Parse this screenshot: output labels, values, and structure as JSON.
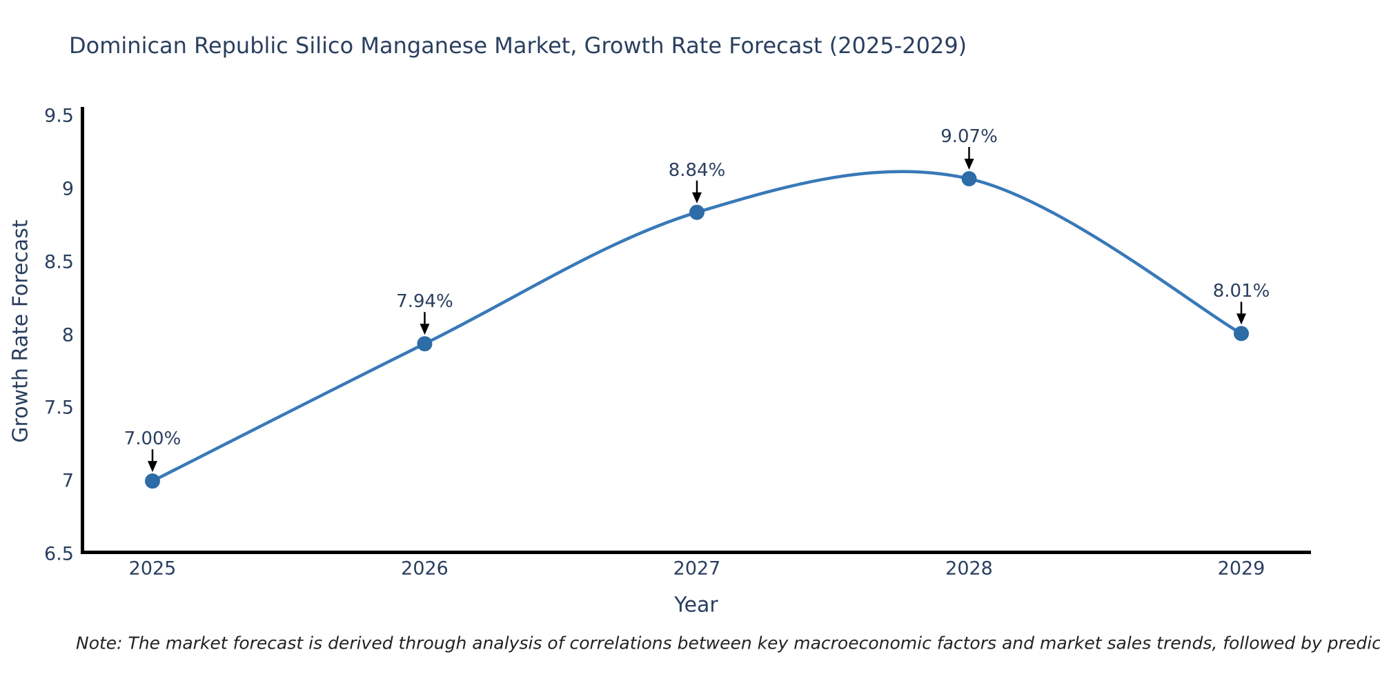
{
  "chart_data": {
    "type": "line",
    "title": "Dominican Republic Silico Manganese Market, Growth Rate Forecast (2025-2029)",
    "xlabel": "Year",
    "ylabel": "Growth Rate Forecast",
    "x": [
      2025,
      2026,
      2027,
      2028,
      2029
    ],
    "x_tick_labels": [
      "2025",
      "2026",
      "2027",
      "2028",
      "2029"
    ],
    "series": [
      {
        "name": "Growth Rate Forecast",
        "values": [
          7.0,
          7.94,
          8.84,
          9.07,
          8.01
        ]
      }
    ],
    "point_labels": [
      "7.00%",
      "7.94%",
      "8.84%",
      "9.07%",
      "8.01%"
    ],
    "ylim": [
      6.5,
      9.5
    ],
    "y_tick_values": [
      9.5,
      9,
      8.5,
      8,
      7.5,
      7,
      6.5
    ],
    "y_tick_labels": [
      "9.5",
      "9",
      "8.5",
      "8",
      "7.5",
      "7",
      "6.5"
    ],
    "line_shape": "spline",
    "grid": false,
    "legend": false,
    "annotations_have_arrows": true,
    "colors": {
      "line": "#3879b8",
      "marker": "#2d6ca6",
      "arrow": "#000000",
      "axis": "#000000",
      "text": "#2a3f5f",
      "note_text": "#222222",
      "background": "#ffffff"
    }
  },
  "note": {
    "text": "Note: The market forecast is derived through analysis of correlations between key macroeconomic factors and market sales trends, followed by predictive modeling to project future sales"
  }
}
